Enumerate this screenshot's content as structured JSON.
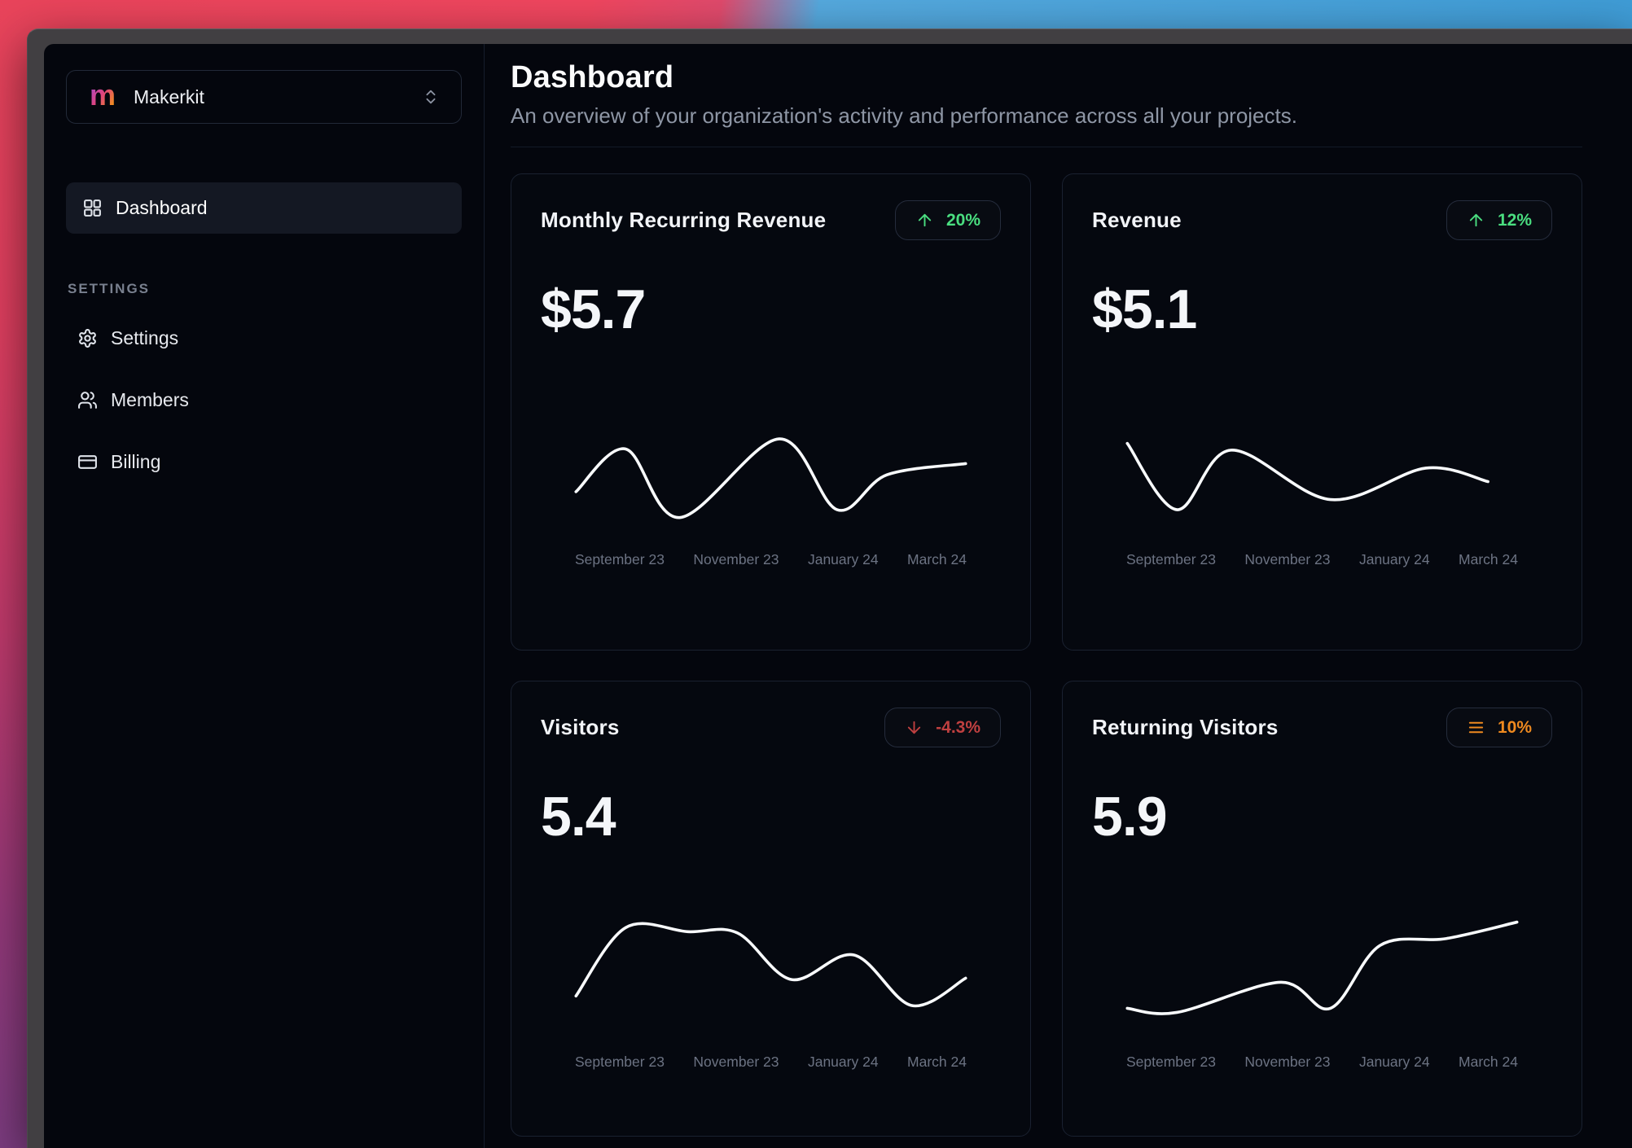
{
  "workspace": {
    "logo_letter": "m",
    "name": "Makerkit"
  },
  "sidebar": {
    "nav": [
      {
        "label": "Dashboard",
        "icon": "layout-grid",
        "active": true
      }
    ],
    "section_label": "SETTINGS",
    "settings_nav": [
      {
        "label": "Settings",
        "icon": "gear"
      },
      {
        "label": "Members",
        "icon": "users"
      },
      {
        "label": "Billing",
        "icon": "credit-card"
      }
    ]
  },
  "header": {
    "title": "Dashboard",
    "subtitle": "An overview of your organization's activity and performance across all your projects."
  },
  "cards": [
    {
      "title": "Monthly Recurring Revenue",
      "value": "$5.7",
      "badge": {
        "text": "20%",
        "trend": "up",
        "color": "#4ade80"
      }
    },
    {
      "title": "Revenue",
      "value": "$5.1",
      "badge": {
        "text": "12%",
        "trend": "up",
        "color": "#4ade80"
      }
    },
    {
      "title": "Visitors",
      "value": "5.4",
      "badge": {
        "text": "-4.3%",
        "trend": "down",
        "color": "#bf4040"
      }
    },
    {
      "title": "Returning Visitors",
      "value": "5.9",
      "badge": {
        "text": "10%",
        "trend": "flat",
        "color": "#ef8a1f"
      }
    }
  ],
  "chart_data": [
    {
      "type": "line",
      "title": "Monthly Recurring Revenue sparkline",
      "x_labels": [
        "September 23",
        "November 23",
        "January 24",
        "March 24"
      ],
      "y_normalized": true,
      "ylim": [
        0,
        100
      ],
      "grid": false,
      "legend": false,
      "points": [
        [
          3,
          37
        ],
        [
          15,
          75
        ],
        [
          28,
          14
        ],
        [
          52,
          84
        ],
        [
          66,
          21
        ],
        [
          78,
          52
        ],
        [
          97,
          62
        ]
      ]
    },
    {
      "type": "line",
      "title": "Revenue sparkline",
      "x_labels": [
        "September 23",
        "November 23",
        "January 24",
        "March 24"
      ],
      "y_normalized": true,
      "ylim": [
        0,
        100
      ],
      "grid": false,
      "legend": false,
      "points": [
        [
          3,
          80
        ],
        [
          15,
          21
        ],
        [
          28,
          74
        ],
        [
          52,
          30
        ],
        [
          75,
          58
        ],
        [
          90,
          46
        ]
      ]
    },
    {
      "type": "line",
      "title": "Visitors sparkline",
      "x_labels": [
        "September 23",
        "November 23",
        "January 24",
        "March 24"
      ],
      "y_normalized": true,
      "ylim": [
        0,
        100
      ],
      "grid": false,
      "legend": false,
      "points": [
        [
          3,
          29
        ],
        [
          15,
          79
        ],
        [
          30,
          76
        ],
        [
          42,
          75
        ],
        [
          55,
          41
        ],
        [
          70,
          59
        ],
        [
          84,
          22
        ],
        [
          97,
          42
        ]
      ]
    },
    {
      "type": "line",
      "title": "Returning Visitors sparkline",
      "x_labels": [
        "September 23",
        "November 23",
        "January 24",
        "March 24"
      ],
      "y_normalized": true,
      "ylim": [
        0,
        100
      ],
      "grid": false,
      "legend": false,
      "points": [
        [
          3,
          20
        ],
        [
          15,
          17
        ],
        [
          40,
          39
        ],
        [
          52,
          20
        ],
        [
          64,
          66
        ],
        [
          80,
          71
        ],
        [
          97,
          83
        ]
      ]
    }
  ],
  "colors": {
    "positive": "#4ade80",
    "negative": "#bf4040",
    "neutral": "#ef8a1f",
    "line": "#f8fafc",
    "app_background": "#04060d",
    "logo_gradient": [
      "#9a4bdb",
      "#e0447c",
      "#f59e0b"
    ]
  }
}
